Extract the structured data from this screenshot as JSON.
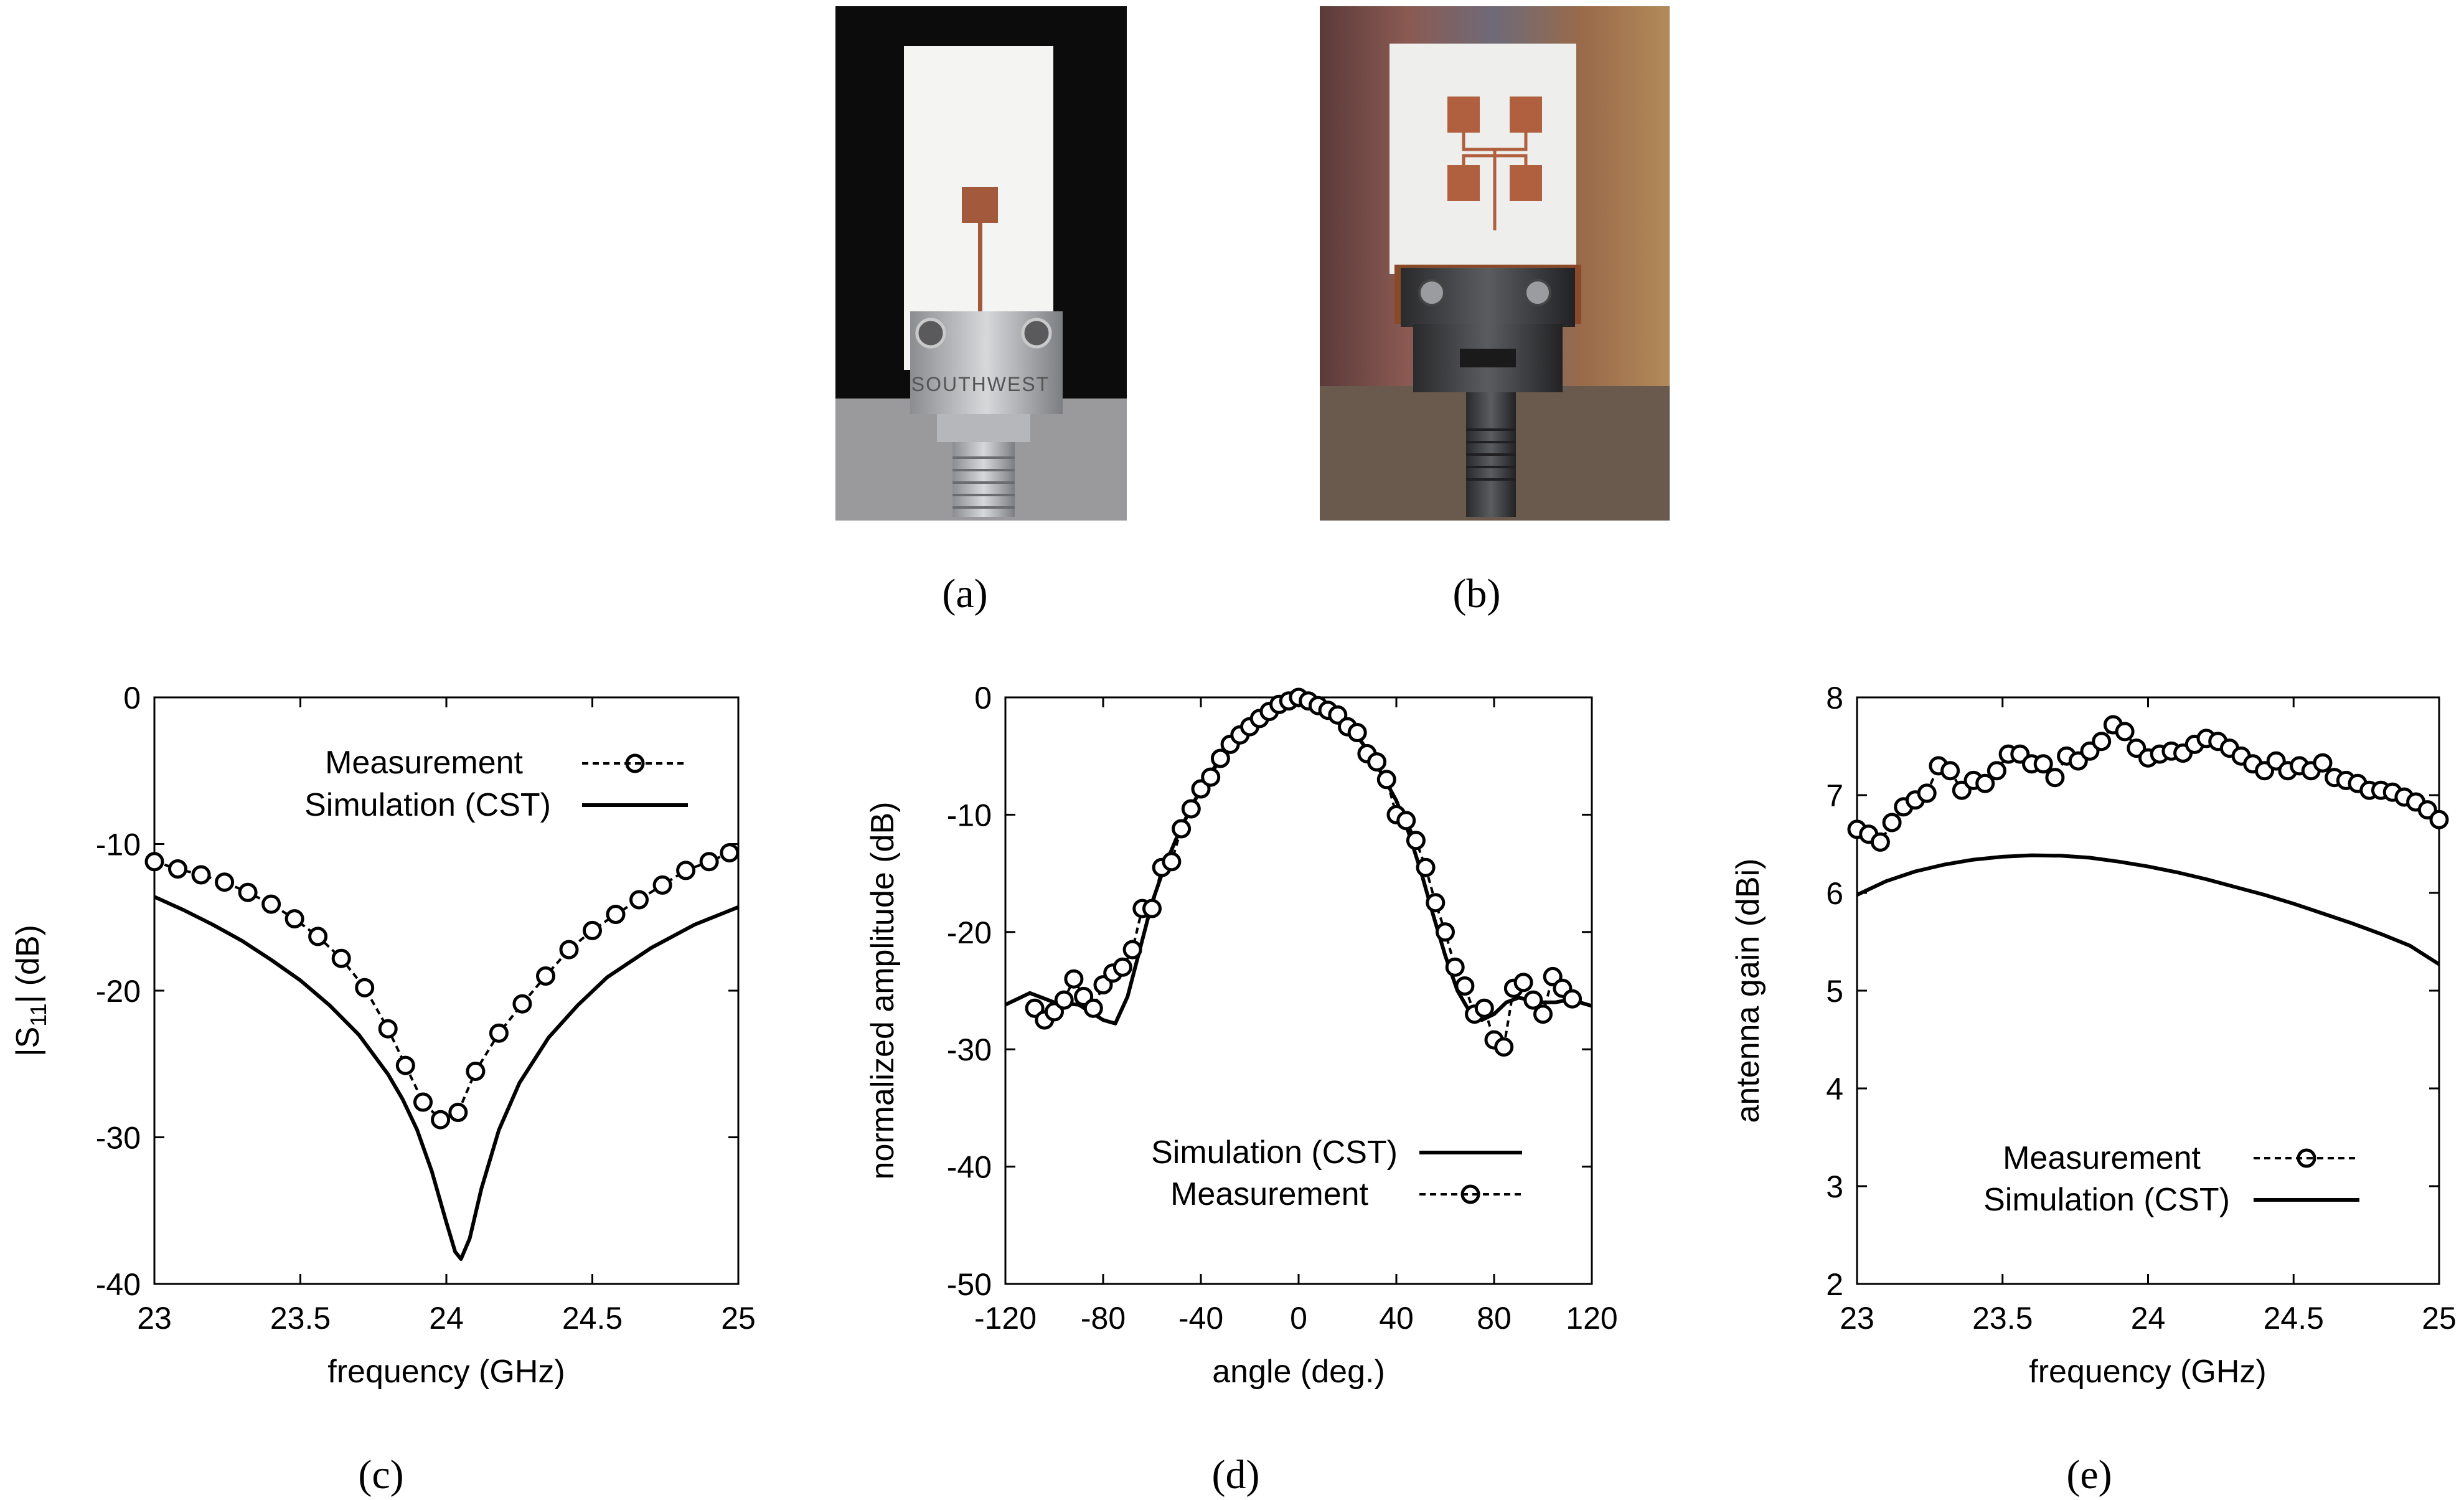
{
  "captions": [
    "(a)",
    "(b)",
    "(c)",
    "(d)",
    "(e)"
  ],
  "photos": [
    {
      "name": "single-patch-antenna-photo",
      "connector_text": "SOUTHWEST"
    },
    {
      "name": "patch-array-antenna-photo"
    }
  ],
  "chart_data": [
    {
      "type": "line",
      "xlabel": "frequency (GHz)",
      "ylabel": "|S11|  (dB)",
      "ylabel_main": "|S",
      "ylabel_sub": "11",
      "ylabel_tail": "|  (dB)",
      "xlim": [
        23,
        25
      ],
      "ylim": [
        -40,
        0
      ],
      "xticks": [
        23,
        23.5,
        24,
        24.5,
        25
      ],
      "xtick_labels": [
        "23",
        "23.5",
        "24",
        "24.5",
        "25"
      ],
      "yticks": [
        -40,
        -30,
        -20,
        -10,
        0
      ],
      "ytick_labels": [
        "-40",
        "-30",
        "-20",
        "-10",
        "0"
      ],
      "legend_position": "top-right",
      "series": [
        {
          "name": "Measurement",
          "style": "dashed-circles",
          "x": [
            23,
            23.08,
            23.16,
            23.24,
            23.32,
            23.4,
            23.48,
            23.56,
            23.64,
            23.72,
            23.8,
            23.86,
            23.92,
            23.98,
            24.04,
            24.1,
            24.18,
            24.26,
            24.34,
            24.42,
            24.5,
            24.58,
            24.66,
            24.74,
            24.82,
            24.9,
            24.97
          ],
          "y": [
            -11.2,
            -11.7,
            -12.1,
            -12.6,
            -13.3,
            -14.1,
            -15.1,
            -16.3,
            -17.8,
            -19.8,
            -22.6,
            -25.1,
            -27.6,
            -28.8,
            -28.3,
            -25.5,
            -22.9,
            -20.9,
            -19.0,
            -17.2,
            -15.9,
            -14.8,
            -13.8,
            -12.8,
            -11.8,
            -11.2,
            -10.6
          ]
        },
        {
          "name": "Simulation (CST)",
          "style": "solid",
          "x": [
            23,
            23.1,
            23.2,
            23.3,
            23.4,
            23.5,
            23.6,
            23.7,
            23.8,
            23.85,
            23.9,
            23.95,
            24.0,
            24.03,
            24.05,
            24.08,
            24.12,
            24.18,
            24.25,
            24.35,
            24.45,
            24.55,
            24.7,
            24.85,
            25
          ],
          "y": [
            -13.6,
            -14.5,
            -15.5,
            -16.6,
            -17.9,
            -19.3,
            -21.0,
            -23.0,
            -25.7,
            -27.4,
            -29.5,
            -32.3,
            -35.8,
            -37.8,
            -38.3,
            -36.9,
            -33.5,
            -29.5,
            -26.3,
            -23.2,
            -21.0,
            -19.1,
            -17.1,
            -15.5,
            -14.3
          ]
        }
      ]
    },
    {
      "type": "line",
      "xlabel": "angle (deg.)",
      "ylabel": "normalized amplitude (dB)",
      "xlim": [
        -120,
        120
      ],
      "ylim": [
        -50,
        0
      ],
      "xticks": [
        -120,
        -80,
        -40,
        0,
        40,
        80,
        120
      ],
      "xtick_labels": [
        "-120",
        "-80",
        "-40",
        "0",
        "40",
        "80",
        "120"
      ],
      "yticks": [
        -50,
        -40,
        -30,
        -20,
        -10,
        0
      ],
      "ytick_labels": [
        "-50",
        "-40",
        "-30",
        "-20",
        "-10",
        "0"
      ],
      "legend_position": "bottom-right",
      "series": [
        {
          "name": "Simulation  (CST)",
          "style": "solid",
          "x": [
            -120,
            -110,
            -100,
            -90,
            -80,
            -75,
            -70,
            -65,
            -60,
            -55,
            -50,
            -45,
            -40,
            -30,
            -20,
            -10,
            0,
            10,
            20,
            30,
            40,
            45,
            50,
            55,
            60,
            65,
            70,
            75,
            80,
            85,
            90,
            95,
            100,
            105,
            110,
            115,
            120
          ],
          "y": [
            -26.2,
            -25.2,
            -26.0,
            -26.2,
            -27.5,
            -27.8,
            -25.5,
            -21.5,
            -17.5,
            -14.5,
            -12.0,
            -9.8,
            -7.8,
            -4.5,
            -2.0,
            -0.5,
            0,
            -0.6,
            -2.2,
            -5.0,
            -8.8,
            -11.5,
            -14.8,
            -18.5,
            -22.0,
            -25.0,
            -26.8,
            -27.5,
            -27.0,
            -26.0,
            -25.6,
            -25.8,
            -26.0,
            -26.0,
            -25.8,
            -26.0,
            -26.3
          ]
        },
        {
          "name": "Measurement",
          "style": "dashed-circles",
          "x": [
            -108,
            -104,
            -100,
            -96,
            -92,
            -88,
            -84,
            -80,
            -76,
            -72,
            -68,
            -64,
            -60,
            -56,
            -52,
            -48,
            -44,
            -40,
            -36,
            -32,
            -28,
            -24,
            -20,
            -16,
            -12,
            -8,
            -4,
            0,
            4,
            8,
            12,
            16,
            20,
            24,
            28,
            32,
            36,
            40,
            44,
            48,
            52,
            56,
            60,
            64,
            68,
            72,
            76,
            80,
            84,
            88,
            92,
            96,
            100,
            104,
            108,
            112
          ],
          "y": [
            -26.5,
            -27.5,
            -26.8,
            -25.8,
            -24.0,
            -25.5,
            -26.5,
            -24.5,
            -23.5,
            -23.0,
            -21.5,
            -18.0,
            -18.0,
            -14.5,
            -14.0,
            -11.2,
            -9.5,
            -7.8,
            -6.8,
            -5.2,
            -4.0,
            -3.2,
            -2.5,
            -1.8,
            -1.2,
            -0.6,
            -0.3,
            0,
            -0.3,
            -0.7,
            -1.1,
            -1.5,
            -2.5,
            -3.0,
            -4.8,
            -5.5,
            -7.0,
            -10.0,
            -10.5,
            -12.2,
            -14.5,
            -17.5,
            -20.0,
            -23.0,
            -24.6,
            -27.0,
            -26.5,
            -29.2,
            -29.8,
            -24.8,
            -24.3,
            -25.8,
            -27.0,
            -23.8,
            -24.8,
            -25.7
          ]
        }
      ]
    },
    {
      "type": "line",
      "xlabel": "frequency (GHz)",
      "ylabel": "antenna gain (dBi)",
      "xlim": [
        23,
        25
      ],
      "ylim": [
        2,
        8
      ],
      "xticks": [
        23,
        23.5,
        24,
        24.5,
        25
      ],
      "xtick_labels": [
        "23",
        "23.5",
        "24",
        "24.5",
        "25"
      ],
      "yticks": [
        2,
        3,
        4,
        5,
        6,
        7,
        8
      ],
      "ytick_labels": [
        "2",
        "3",
        "4",
        "5",
        "6",
        "7",
        "8"
      ],
      "legend_position": "bottom-right",
      "series": [
        {
          "name": "Measurement",
          "style": "dashed-circles",
          "x": [
            23,
            23.04,
            23.08,
            23.12,
            23.16,
            23.2,
            23.24,
            23.28,
            23.32,
            23.36,
            23.4,
            23.44,
            23.48,
            23.52,
            23.56,
            23.6,
            23.64,
            23.68,
            23.72,
            23.76,
            23.8,
            23.84,
            23.88,
            23.92,
            23.96,
            24.0,
            24.04,
            24.08,
            24.12,
            24.16,
            24.2,
            24.24,
            24.28,
            24.32,
            24.36,
            24.4,
            24.44,
            24.48,
            24.52,
            24.56,
            24.6,
            24.64,
            24.68,
            24.72,
            24.76,
            24.8,
            24.84,
            24.88,
            24.92,
            24.96,
            25.0
          ],
          "y": [
            6.65,
            6.6,
            6.52,
            6.72,
            6.88,
            6.95,
            7.02,
            7.3,
            7.25,
            7.05,
            7.15,
            7.12,
            7.25,
            7.42,
            7.42,
            7.32,
            7.32,
            7.18,
            7.4,
            7.35,
            7.45,
            7.55,
            7.72,
            7.65,
            7.48,
            7.38,
            7.42,
            7.45,
            7.43,
            7.52,
            7.58,
            7.55,
            7.48,
            7.4,
            7.32,
            7.25,
            7.35,
            7.25,
            7.3,
            7.25,
            7.33,
            7.18,
            7.15,
            7.12,
            7.05,
            7.05,
            7.03,
            6.98,
            6.93,
            6.85,
            6.75
          ]
        },
        {
          "name": "Simulation  (CST)",
          "style": "solid",
          "x": [
            23,
            23.1,
            23.2,
            23.3,
            23.4,
            23.5,
            23.6,
            23.7,
            23.8,
            23.9,
            24.0,
            24.1,
            24.2,
            24.3,
            24.4,
            24.5,
            24.6,
            24.7,
            24.8,
            24.9,
            25.0
          ],
          "y": [
            5.98,
            6.12,
            6.22,
            6.29,
            6.34,
            6.37,
            6.385,
            6.38,
            6.36,
            6.32,
            6.27,
            6.21,
            6.14,
            6.06,
            5.98,
            5.89,
            5.79,
            5.69,
            5.58,
            5.46,
            5.27
          ]
        }
      ]
    }
  ]
}
